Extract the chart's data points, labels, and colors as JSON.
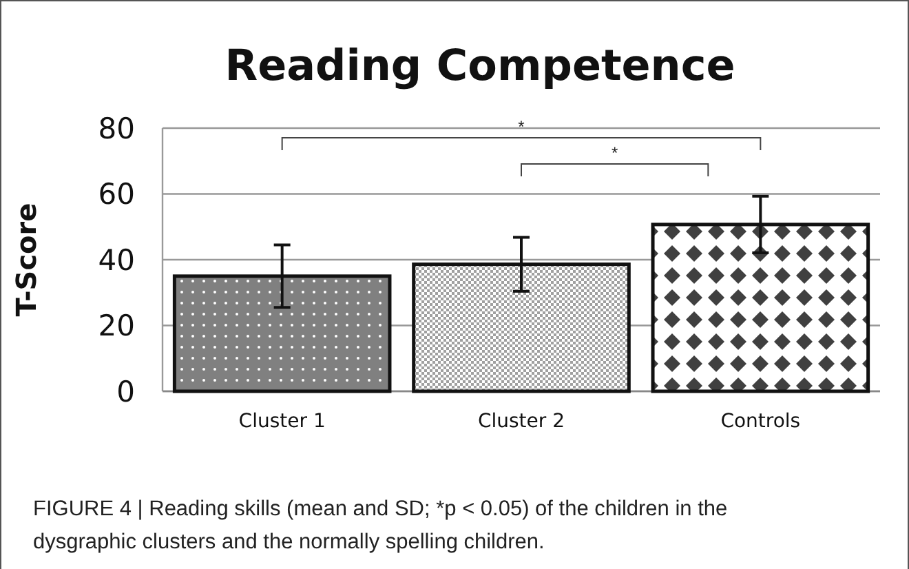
{
  "chart_data": {
    "type": "bar",
    "title": "Reading Competence",
    "ylabel": "T-Score",
    "categories": [
      "Cluster 1",
      "Cluster 2",
      "Controls"
    ],
    "values": [
      35,
      38.6,
      50.7
    ],
    "errors": [
      9.5,
      8.2,
      8.6
    ],
    "colors": [
      "#808080",
      "#a0a0a0",
      "#404040"
    ],
    "ylim": [
      0,
      80
    ],
    "yticks": [
      0,
      20,
      40,
      60,
      80
    ],
    "grid": "y",
    "annotations": [
      "*",
      "*",
      "FIGURE 4 | Reading skills (mean and SD; *p < 0.05) of the children in the dysgraphic clusters and the normally spelling children."
    ]
  }
}
